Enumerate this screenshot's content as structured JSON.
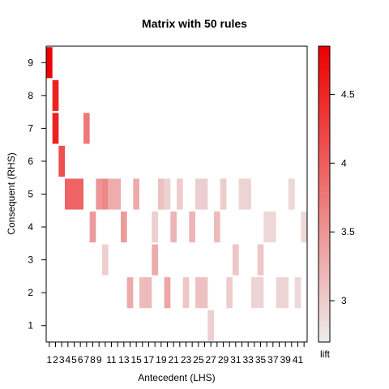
{
  "chart_data": {
    "type": "heatmap",
    "title": "Matrix with 50 rules",
    "xlabel": "Antecedent (LHS)",
    "ylabel": "Consequent (RHS)",
    "x_range": [
      1,
      42
    ],
    "y_range": [
      1,
      9
    ],
    "x_tick_labels": [
      "1",
      "2",
      "3",
      "4",
      "5",
      "6",
      "7",
      "8",
      "9",
      "11",
      "13",
      "15",
      "17",
      "19",
      "21",
      "23",
      "25",
      "27",
      "29",
      "31",
      "33",
      "35",
      "37",
      "39",
      "41"
    ],
    "y_tick_labels": [
      "1",
      "2",
      "3",
      "4",
      "5",
      "6",
      "7",
      "8",
      "9"
    ],
    "legend": {
      "label": "lift",
      "position": "right",
      "range": [
        2.7,
        4.85
      ],
      "ticks": [
        "3",
        "3.5",
        "4",
        "4.5"
      ],
      "tick_values": [
        3,
        3.5,
        4,
        4.5
      ],
      "low_color": "#EDEDED",
      "high_color": "#EE0000"
    },
    "cells": [
      {
        "lhs": [
          1,
          1
        ],
        "rhs": 9,
        "lift": 4.85
      },
      {
        "lhs": [
          2,
          2
        ],
        "rhs": 8,
        "lift": 4.55
      },
      {
        "lhs": [
          2,
          2
        ],
        "rhs": 7,
        "lift": 4.55
      },
      {
        "lhs": [
          3,
          3
        ],
        "rhs": 6,
        "lift": 4.15
      },
      {
        "lhs": [
          4,
          6
        ],
        "rhs": 5,
        "lift": 3.95
      },
      {
        "lhs": [
          7,
          7
        ],
        "rhs": 7,
        "lift": 3.75
      },
      {
        "lhs": [
          8,
          8
        ],
        "rhs": 4,
        "lift": 3.45
      },
      {
        "lhs": [
          9,
          9
        ],
        "rhs": 5,
        "lift": 3.5
      },
      {
        "lhs": [
          10,
          10
        ],
        "rhs": 5,
        "lift": 3.62
      },
      {
        "lhs": [
          10,
          10
        ],
        "rhs": 3,
        "lift": 2.97
      },
      {
        "lhs": [
          11,
          12
        ],
        "rhs": 5,
        "lift": 3.28
      },
      {
        "lhs": [
          13,
          13
        ],
        "rhs": 4,
        "lift": 3.45
      },
      {
        "lhs": [
          14,
          14
        ],
        "rhs": 2,
        "lift": 3.3
      },
      {
        "lhs": [
          15,
          15
        ],
        "rhs": 5,
        "lift": 3.3
      },
      {
        "lhs": [
          16,
          17
        ],
        "rhs": 2,
        "lift": 3.15
      },
      {
        "lhs": [
          18,
          18
        ],
        "rhs": 4,
        "lift": 2.97
      },
      {
        "lhs": [
          18,
          18
        ],
        "rhs": 3,
        "lift": 3.3
      },
      {
        "lhs": [
          19,
          19
        ],
        "rhs": 5,
        "lift": 3.1
      },
      {
        "lhs": [
          20,
          20
        ],
        "rhs": 5,
        "lift": 2.95
      },
      {
        "lhs": [
          20,
          20
        ],
        "rhs": 2,
        "lift": 3.35
      },
      {
        "lhs": [
          21,
          21
        ],
        "rhs": 4,
        "lift": 3.2
      },
      {
        "lhs": [
          22,
          22
        ],
        "rhs": 5,
        "lift": 3.0
      },
      {
        "lhs": [
          23,
          23
        ],
        "rhs": 2,
        "lift": 3.05
      },
      {
        "lhs": [
          24,
          24
        ],
        "rhs": 4,
        "lift": 3.2
      },
      {
        "lhs": [
          25,
          26
        ],
        "rhs": 5,
        "lift": 2.98
      },
      {
        "lhs": [
          25,
          26
        ],
        "rhs": 2,
        "lift": 3.1
      },
      {
        "lhs": [
          27,
          27
        ],
        "rhs": 1,
        "lift": 2.97
      },
      {
        "lhs": [
          28,
          28
        ],
        "rhs": 4,
        "lift": 3.15
      },
      {
        "lhs": [
          29,
          29
        ],
        "rhs": 5,
        "lift": 3.0
      },
      {
        "lhs": [
          30,
          30
        ],
        "rhs": 2,
        "lift": 3.0
      },
      {
        "lhs": [
          31,
          31
        ],
        "rhs": 3,
        "lift": 3.05
      },
      {
        "lhs": [
          32,
          33
        ],
        "rhs": 5,
        "lift": 2.93
      },
      {
        "lhs": [
          34,
          35
        ],
        "rhs": 2,
        "lift": 2.93
      },
      {
        "lhs": [
          35,
          35
        ],
        "rhs": 3,
        "lift": 3.05
      },
      {
        "lhs": [
          36,
          37
        ],
        "rhs": 4,
        "lift": 2.9
      },
      {
        "lhs": [
          38,
          39
        ],
        "rhs": 2,
        "lift": 2.93
      },
      {
        "lhs": [
          40,
          40
        ],
        "rhs": 5,
        "lift": 2.9
      },
      {
        "lhs": [
          41,
          41
        ],
        "rhs": 2,
        "lift": 2.9
      },
      {
        "lhs": [
          42,
          42
        ],
        "rhs": 4,
        "lift": 2.9
      }
    ]
  }
}
